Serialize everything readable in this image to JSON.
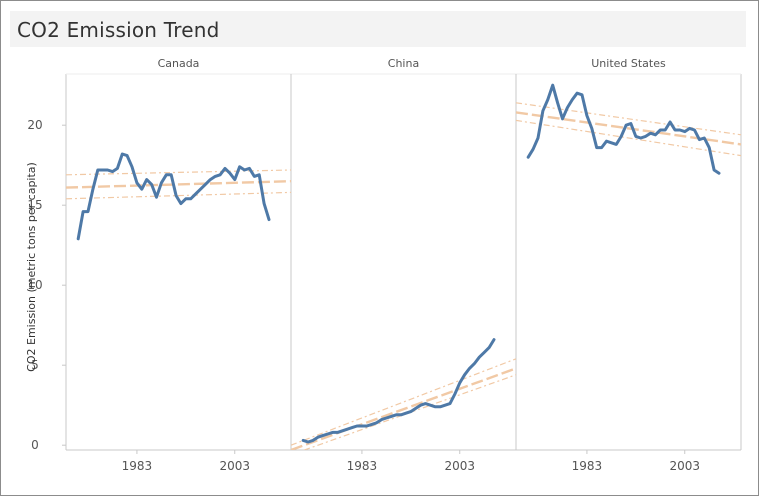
{
  "title": "CO2 Emission Trend",
  "colors": {
    "series": "#4e79a7",
    "trend": "#f1c9a5",
    "axis": "#c8c8c8",
    "text": "#555555"
  },
  "chart_data": {
    "type": "line",
    "title": "CO2 Emission Trend",
    "ylabel": "CO2 Emission (metric tons per capita)",
    "ylim": [
      -0.3,
      23.2
    ],
    "xlim": [
      1968.5,
      2014.5
    ],
    "y_ticks": [
      0,
      5,
      10,
      15,
      20
    ],
    "x_ticks": [
      1983,
      2003
    ],
    "x_tick_labels": [
      "1983",
      "2003"
    ],
    "grid": false,
    "panels": [
      {
        "name": "Canada",
        "x": [
          1971,
          1972,
          1973,
          1974,
          1975,
          1976,
          1977,
          1978,
          1979,
          1980,
          1981,
          1982,
          1983,
          1984,
          1985,
          1986,
          1987,
          1988,
          1989,
          1990,
          1991,
          1992,
          1993,
          1994,
          1995,
          1996,
          1997,
          1998,
          1999,
          2000,
          2001,
          2002,
          2003,
          2004,
          2005,
          2006,
          2007,
          2008,
          2009,
          2010
        ],
        "y": [
          12.9,
          14.6,
          14.6,
          16.0,
          17.2,
          17.2,
          17.2,
          17.1,
          17.3,
          18.2,
          18.1,
          17.4,
          16.4,
          16.0,
          16.6,
          16.3,
          15.5,
          16.4,
          16.9,
          16.9,
          15.6,
          15.1,
          15.4,
          15.4,
          15.7,
          16.0,
          16.3,
          16.6,
          16.8,
          16.9,
          17.3,
          17.0,
          16.6,
          17.4,
          17.2,
          17.3,
          16.8,
          16.9,
          15.1,
          14.1
        ],
        "trend": {
          "fit": [
            16.1,
            16.5
          ],
          "upper": [
            16.9,
            17.2
          ],
          "lower": [
            15.4,
            15.8
          ]
        }
      },
      {
        "name": "China",
        "x": [
          1971,
          1972,
          1973,
          1974,
          1975,
          1976,
          1977,
          1978,
          1979,
          1980,
          1981,
          1982,
          1983,
          1984,
          1985,
          1986,
          1987,
          1988,
          1989,
          1990,
          1991,
          1992,
          1993,
          1994,
          1995,
          1996,
          1997,
          1998,
          1999,
          2000,
          2001,
          2002,
          2003,
          2004,
          2005,
          2006,
          2007,
          2008,
          2009,
          2010
        ],
        "y": [
          0.3,
          0.2,
          0.3,
          0.5,
          0.6,
          0.7,
          0.8,
          0.8,
          0.9,
          1.0,
          1.1,
          1.2,
          1.2,
          1.2,
          1.3,
          1.4,
          1.6,
          1.7,
          1.8,
          1.9,
          1.9,
          2.0,
          2.1,
          2.3,
          2.5,
          2.6,
          2.5,
          2.4,
          2.4,
          2.5,
          2.6,
          3.2,
          3.9,
          4.4,
          4.8,
          5.1,
          5.5,
          5.8,
          6.1,
          6.6
        ],
        "trend": {
          "fit": [
            -0.3,
            4.8
          ],
          "upper": [
            0.0,
            5.4
          ],
          "lower": [
            -0.6,
            4.4
          ]
        }
      },
      {
        "name": "United States",
        "x": [
          1971,
          1972,
          1973,
          1974,
          1975,
          1976,
          1977,
          1978,
          1979,
          1980,
          1981,
          1982,
          1983,
          1984,
          1985,
          1986,
          1987,
          1988,
          1989,
          1990,
          1991,
          1992,
          1993,
          1994,
          1995,
          1996,
          1997,
          1998,
          1999,
          2000,
          2001,
          2002,
          2003,
          2004,
          2005,
          2006,
          2007,
          2008,
          2009,
          2010
        ],
        "y": [
          18.0,
          18.5,
          19.2,
          20.9,
          21.6,
          22.5,
          21.4,
          20.4,
          21.1,
          21.6,
          22.0,
          21.9,
          20.6,
          19.8,
          18.6,
          18.6,
          19.0,
          18.9,
          18.8,
          19.3,
          20.0,
          20.1,
          19.3,
          19.2,
          19.3,
          19.5,
          19.4,
          19.7,
          19.7,
          20.2,
          19.7,
          19.7,
          19.6,
          19.8,
          19.7,
          19.1,
          19.2,
          18.6,
          17.2,
          17.0
        ],
        "trend": {
          "fit": [
            20.8,
            18.8
          ],
          "upper": [
            21.4,
            19.4
          ],
          "lower": [
            20.3,
            18.1
          ]
        }
      }
    ]
  }
}
